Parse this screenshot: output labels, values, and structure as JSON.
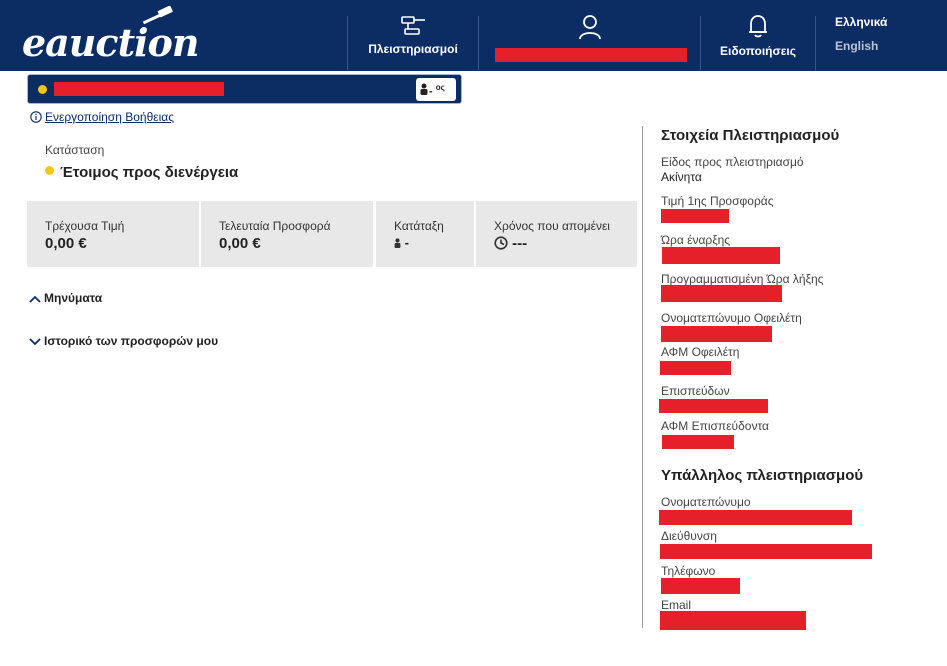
{
  "header": {
    "logo_text": "eauction",
    "nav": {
      "auctions_label": "Πλειστηριασμοί",
      "notifications_label": "Ειδοποιήσεις"
    },
    "languages": [
      "Ελληνικά",
      "English"
    ]
  },
  "auction_bar": {
    "rank": "-",
    "rank_suffix": "ος"
  },
  "help": {
    "link_label": "Ενεργοποίηση Βοήθειας"
  },
  "status": {
    "label": "Κατάσταση",
    "value": "Έτοιμος προς διενέργεια"
  },
  "stats": [
    {
      "label": "Τρέχουσα Τιμή",
      "value": "0,00 €"
    },
    {
      "label": "Τελευταία Προσφορά",
      "value": "0,00 €"
    },
    {
      "label": "Κατάταξη",
      "value": "-"
    },
    {
      "label": "Χρόνος που απομένει",
      "value": "---"
    }
  ],
  "sections": {
    "messages_label": "Μηνύματα",
    "history_label": "Ιστορικό των προσφορών μου"
  },
  "auction_details": {
    "title": "Στοιχεία Πλειστηριασμού",
    "fields": [
      {
        "label": "Είδος προς πλειστηριασμό",
        "value": "Ακίνητα"
      },
      {
        "label": "Τιμή 1ης Προσφοράς"
      },
      {
        "label": "Ώρα έναρξης"
      },
      {
        "label": "Προγραμματισμένη Ώρα λήξης"
      },
      {
        "label": "Ονοματεπώνυμο Οφειλέτη"
      },
      {
        "label": "ΑΦΜ Οφειλέτη"
      },
      {
        "label": "Επισπεύδων"
      },
      {
        "label": "ΑΦΜ Επισπεύδοντα"
      }
    ]
  },
  "official": {
    "title": "Υπάλληλος πλειστηριασμού",
    "fields": [
      {
        "label": "Ονοματεπώνυμο"
      },
      {
        "label": "Διεύθυνση"
      },
      {
        "label": "Τηλέφωνο"
      },
      {
        "label": "Email"
      }
    ]
  },
  "colors": {
    "header_bg": "#0b2d63",
    "status_dot": "#f5c518",
    "panel_bg": "#e8e8e8",
    "redaction": "#e5202a"
  }
}
